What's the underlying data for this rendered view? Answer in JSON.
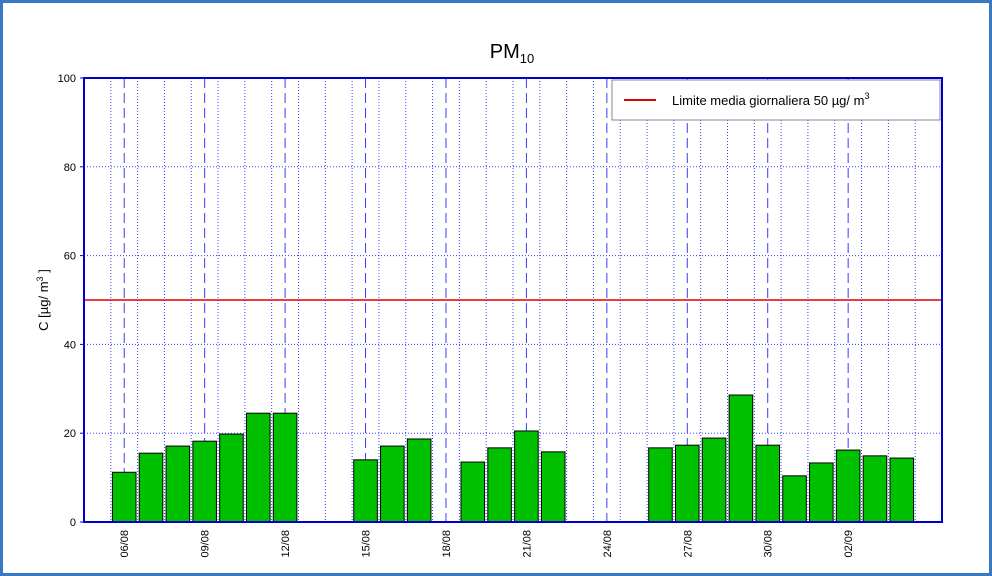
{
  "chart_data": {
    "type": "bar",
    "title": {
      "text": "PM",
      "subscript": "10"
    },
    "y_label": {
      "text": "C [µg/ m",
      "superscript": "3",
      "suffix": " ]"
    },
    "categories": [
      null,
      "06/08",
      null,
      null,
      "09/08",
      null,
      null,
      "12/08",
      null,
      null,
      "15/08",
      null,
      null,
      "18/08",
      null,
      null,
      "21/08",
      null,
      null,
      "24/08",
      null,
      null,
      "27/08",
      null,
      null,
      "30/08",
      null,
      null,
      "02/09",
      null,
      null,
      null
    ],
    "values": [
      null,
      11.2,
      15.5,
      17.1,
      18.2,
      19.8,
      24.5,
      24.5,
      null,
      null,
      14,
      17.1,
      18.7,
      null,
      13.5,
      16.7,
      20.5,
      15.8,
      null,
      null,
      null,
      16.7,
      17.3,
      18.9,
      28.6,
      17.3,
      10.4,
      13.3,
      16.2,
      14.9,
      14.4,
      null
    ],
    "color": "#00c000",
    "ylim": [
      0,
      100
    ],
    "yticks": [
      0,
      20,
      40,
      60,
      80,
      100
    ],
    "grid": true,
    "reference_line": {
      "value": 50,
      "color": "#e00000",
      "name": "Limite media giornaliera 50 µg/ m",
      "name_superscript": "3"
    },
    "legend_position": "top-right"
  }
}
